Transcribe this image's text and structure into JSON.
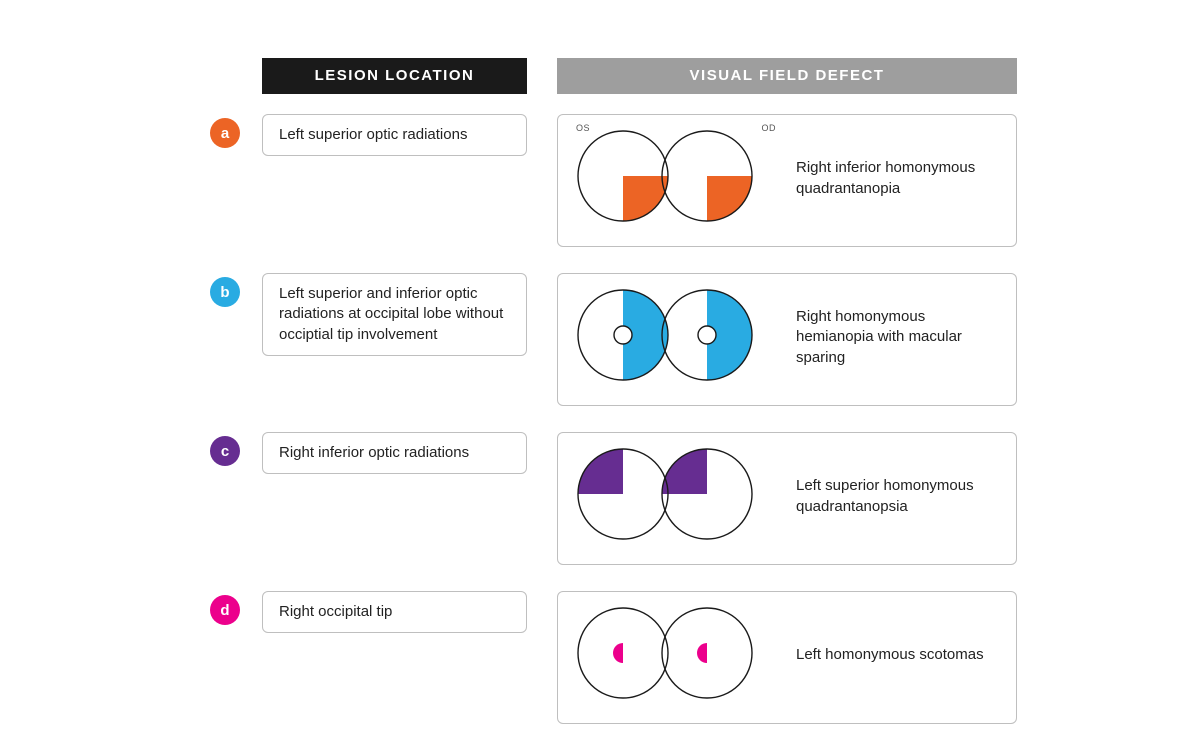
{
  "headers": {
    "lesion": "LESION LOCATION",
    "vfd": "VISUAL FIELD DEFECT"
  },
  "eye_label_left": "OS",
  "eye_label_right": "OD",
  "circle_r": 45,
  "stroke": "#1a1a1a",
  "stroke_w": 1.4,
  "rows": [
    {
      "id": "a",
      "color": "#ec6425",
      "lesion": "Left superior optic radiations",
      "defect": "Right inferior homonymous quadrantanopia",
      "pattern": "inferior-right-quadrant",
      "show_labels": true
    },
    {
      "id": "b",
      "color": "#29abe2",
      "lesion": "Left superior and inferior optic radiations at occipital lobe without occiptial tip involvement",
      "defect": "Right homonymous hemianopia with macular sparing",
      "pattern": "right-hemi-macular-sparing"
    },
    {
      "id": "c",
      "color": "#662d91",
      "lesion": "Right inferior optic radiations",
      "defect": "Left superior homonymous quadrantanopsia",
      "pattern": "superior-left-quadrant"
    },
    {
      "id": "d",
      "color": "#ec008c",
      "lesion": "Right occipital tip",
      "defect": "Left homonymous scotomas",
      "pattern": "left-central-scotoma"
    }
  ]
}
